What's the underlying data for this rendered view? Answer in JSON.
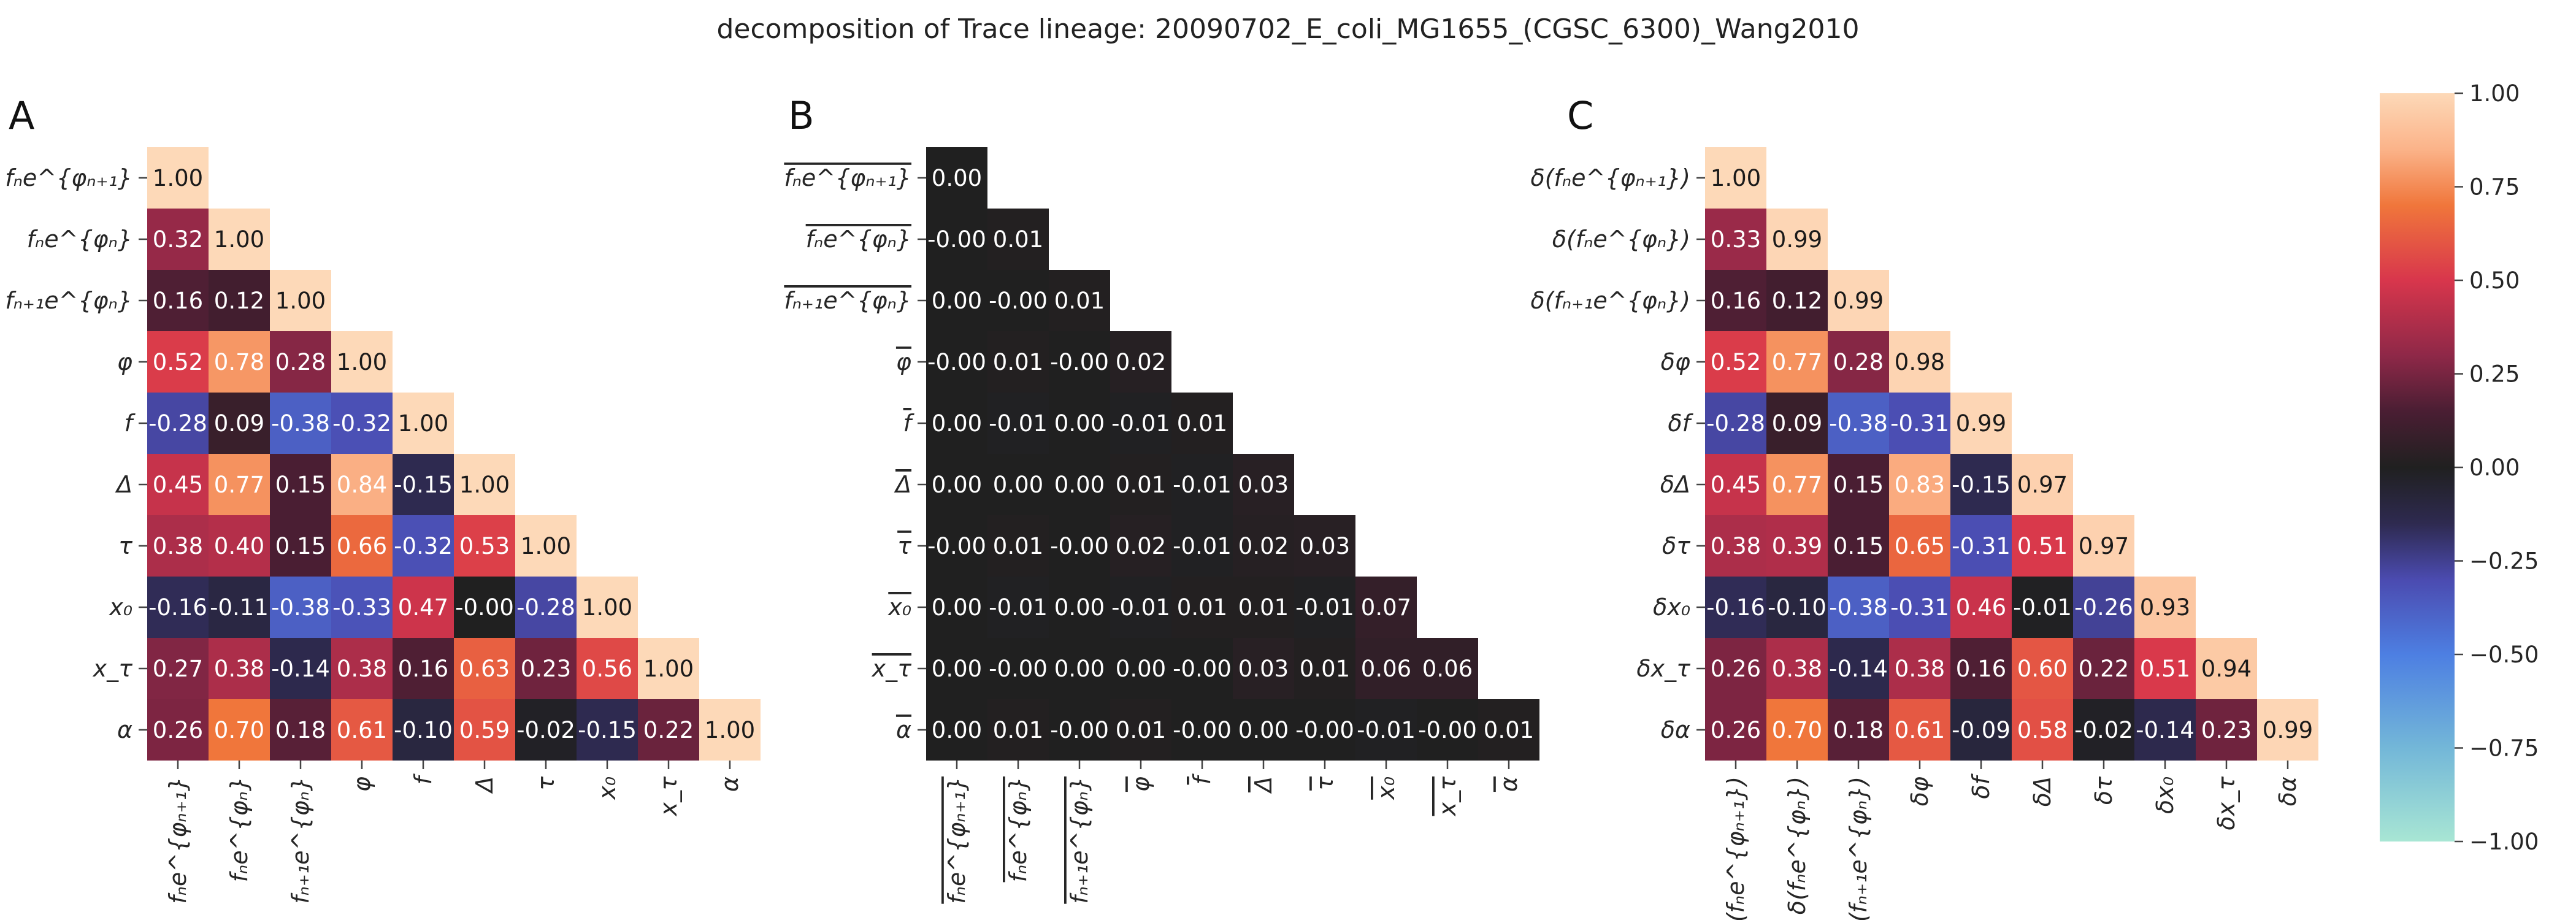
{
  "title": "decomposition of Trace lineage: 20090702_E_coli_MG1655_(CGSC_6300)_Wang2010",
  "colors": {
    "colormap_stops": [
      [
        -1.0,
        "#a8e6d4"
      ],
      [
        -0.75,
        "#73b7d8"
      ],
      [
        -0.5,
        "#4d7fe2"
      ],
      [
        -0.3,
        "#4b4bb0"
      ],
      [
        -0.15,
        "#2e2a50"
      ],
      [
        0.0,
        "#202020"
      ],
      [
        0.15,
        "#4a1e33"
      ],
      [
        0.3,
        "#8f2848"
      ],
      [
        0.5,
        "#d8364c"
      ],
      [
        0.7,
        "#f0763b"
      ],
      [
        0.85,
        "#fbb389"
      ],
      [
        1.0,
        "#fdd9b8"
      ]
    ],
    "light_text": "#ffffff",
    "dark_text": "#1a1a1a"
  },
  "chart_data": [
    {
      "type": "heatmap",
      "panel": "A",
      "row_labels": [
        "fₙe^{φₙ₊₁}",
        "fₙe^{φₙ}",
        "fₙ₊₁e^{φₙ}",
        "φ",
        "f",
        "Δ",
        "τ",
        "x₀",
        "x_τ",
        "α"
      ],
      "col_labels": [
        "fₙe^{φₙ₊₁}",
        "fₙe^{φₙ}",
        "fₙ₊₁e^{φₙ}",
        "φ",
        "f",
        "Δ",
        "τ",
        "x₀",
        "x_τ",
        "α"
      ],
      "values": [
        [
          1.0
        ],
        [
          0.32,
          1.0
        ],
        [
          0.16,
          0.12,
          1.0
        ],
        [
          0.52,
          0.78,
          0.28,
          1.0
        ],
        [
          -0.28,
          0.09,
          -0.38,
          -0.32,
          1.0
        ],
        [
          0.45,
          0.77,
          0.15,
          0.84,
          -0.15,
          1.0
        ],
        [
          0.38,
          0.4,
          0.15,
          0.66,
          -0.32,
          0.53,
          1.0
        ],
        [
          -0.16,
          -0.11,
          -0.38,
          -0.33,
          0.47,
          -0.0,
          -0.28,
          1.0
        ],
        [
          0.27,
          0.38,
          -0.14,
          0.38,
          0.16,
          0.63,
          0.23,
          0.56,
          1.0
        ],
        [
          0.26,
          0.7,
          0.18,
          0.61,
          -0.1,
          0.59,
          -0.02,
          -0.15,
          0.22,
          1.0
        ]
      ]
    },
    {
      "type": "heatmap",
      "panel": "B",
      "row_labels": [
        "overline:fₙe^{φₙ₊₁}",
        "overline:fₙe^{φₙ}",
        "overline:fₙ₊₁e^{φₙ}",
        "overline:φ",
        "overline:f",
        "overline:Δ",
        "overline:τ",
        "overline:x₀",
        "overline:x_τ",
        "overline:α"
      ],
      "col_labels": [
        "overline:fₙe^{φₙ₊₁}",
        "overline:fₙe^{φₙ}",
        "overline:fₙ₊₁e^{φₙ}",
        "overline:φ",
        "overline:f",
        "overline:Δ",
        "overline:τ",
        "overline:x₀",
        "overline:x_τ",
        "overline:α"
      ],
      "values": [
        [
          0.0
        ],
        [
          -0.0,
          0.01
        ],
        [
          0.0,
          -0.0,
          0.01
        ],
        [
          -0.0,
          0.01,
          -0.0,
          0.02
        ],
        [
          0.0,
          -0.01,
          0.0,
          -0.01,
          0.01
        ],
        [
          0.0,
          0.0,
          0.0,
          0.01,
          -0.01,
          0.03
        ],
        [
          -0.0,
          0.01,
          -0.0,
          0.02,
          -0.01,
          0.02,
          0.03
        ],
        [
          0.0,
          -0.01,
          0.0,
          -0.01,
          0.01,
          0.01,
          -0.01,
          0.07
        ],
        [
          0.0,
          -0.0,
          0.0,
          0.0,
          -0.0,
          0.03,
          0.01,
          0.06,
          0.06
        ],
        [
          0.0,
          0.01,
          -0.0,
          0.01,
          -0.0,
          0.0,
          -0.0,
          -0.01,
          -0.0,
          0.01
        ]
      ]
    },
    {
      "type": "heatmap",
      "panel": "C",
      "row_labels": [
        "δ(fₙe^{φₙ₊₁})",
        "δ(fₙe^{φₙ})",
        "δ(fₙ₊₁e^{φₙ})",
        "δφ",
        "δf",
        "δΔ",
        "δτ",
        "δx₀",
        "δx_τ",
        "δα"
      ],
      "col_labels": [
        "δ(fₙe^{φₙ₊₁})",
        "δ(fₙe^{φₙ})",
        "δ(fₙ₊₁e^{φₙ})",
        "δφ",
        "δf",
        "δΔ",
        "δτ",
        "δx₀",
        "δx_τ",
        "δα"
      ],
      "values": [
        [
          1.0
        ],
        [
          0.33,
          0.99
        ],
        [
          0.16,
          0.12,
          0.99
        ],
        [
          0.52,
          0.77,
          0.28,
          0.98
        ],
        [
          -0.28,
          0.09,
          -0.38,
          -0.31,
          0.99
        ],
        [
          0.45,
          0.77,
          0.15,
          0.83,
          -0.15,
          0.97
        ],
        [
          0.38,
          0.39,
          0.15,
          0.65,
          -0.31,
          0.51,
          0.97
        ],
        [
          -0.16,
          -0.1,
          -0.38,
          -0.31,
          0.46,
          -0.01,
          -0.26,
          0.93
        ],
        [
          0.26,
          0.38,
          -0.14,
          0.38,
          0.16,
          0.6,
          0.22,
          0.51,
          0.94
        ],
        [
          0.26,
          0.7,
          0.18,
          0.61,
          -0.09,
          0.58,
          -0.02,
          -0.14,
          0.23,
          0.99
        ]
      ]
    }
  ],
  "colorbar": {
    "vmin": -1.0,
    "vmax": 1.0,
    "tick_labels": [
      "1.00",
      "0.75",
      "0.50",
      "0.25",
      "0.00",
      "−0.25",
      "−0.50",
      "−0.75",
      "−1.00"
    ],
    "tick_values": [
      1.0,
      0.75,
      0.5,
      0.25,
      0.0,
      -0.25,
      -0.5,
      -0.75,
      -1.0
    ]
  }
}
